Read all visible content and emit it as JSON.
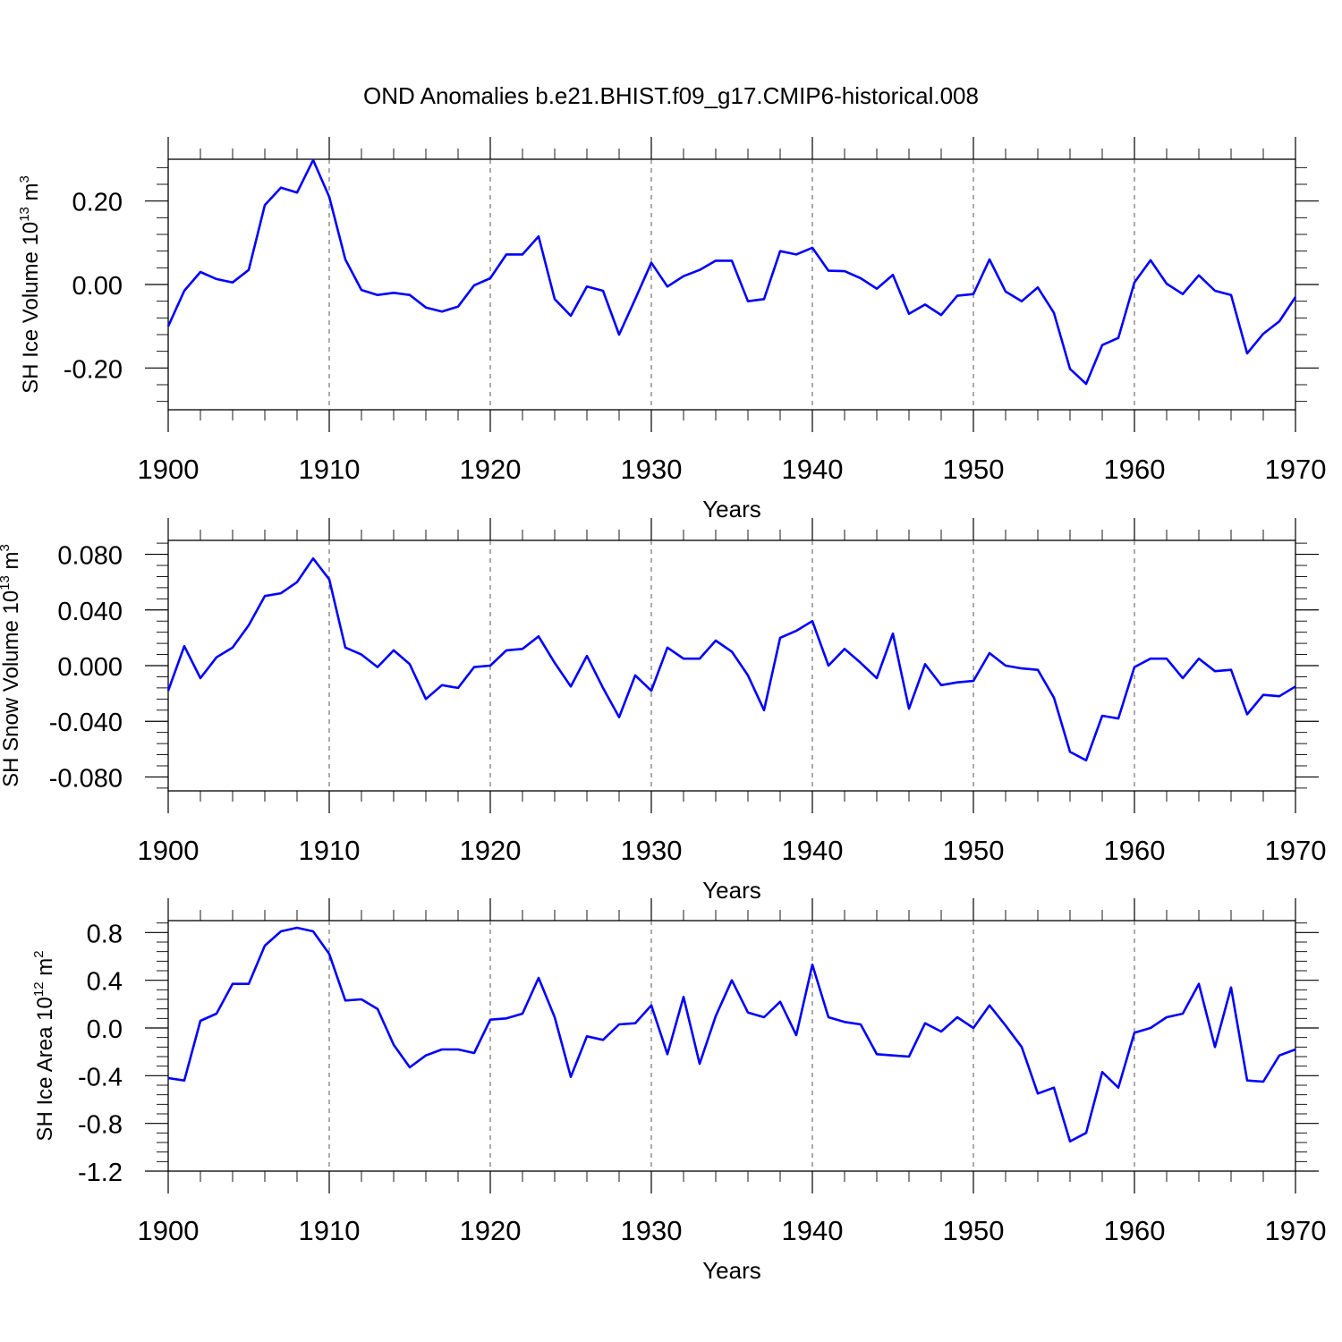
{
  "title": "OND Anomalies b.e21.BHIST.f09_g17.CMIP6-historical.008",
  "colors": {
    "line": "#0000ff",
    "axis": "#000000",
    "grid": "#555555"
  },
  "chart_data": [
    {
      "type": "line",
      "ylabel_main": "SH Ice Volume 10",
      "ylabel_exp": "13",
      "ylabel_unit": " m",
      "ylabel_unit_exp": "3",
      "xlabel": "Years",
      "xlim": [
        1900,
        1970
      ],
      "ylim": [
        -0.3,
        0.3
      ],
      "yticks": [
        -0.2,
        0.0,
        0.2
      ],
      "ytick_labels": [
        "-0.20",
        "0.00",
        "0.20"
      ],
      "xticks": [
        1900,
        1910,
        1920,
        1930,
        1940,
        1950,
        1960,
        1970
      ],
      "xtick_labels": [
        "1900",
        "1910",
        "1920",
        "1930",
        "1940",
        "1950",
        "1960",
        "1970"
      ],
      "grid_x": [
        1910,
        1920,
        1930,
        1940,
        1950,
        1960
      ],
      "x": [
        1900,
        1901,
        1902,
        1903,
        1904,
        1905,
        1906,
        1907,
        1908,
        1909,
        1910,
        1911,
        1912,
        1913,
        1914,
        1915,
        1916,
        1917,
        1918,
        1919,
        1920,
        1921,
        1922,
        1923,
        1924,
        1925,
        1926,
        1927,
        1928,
        1929,
        1930,
        1931,
        1932,
        1933,
        1934,
        1935,
        1936,
        1937,
        1938,
        1939,
        1940,
        1941,
        1942,
        1943,
        1944,
        1945,
        1946,
        1947,
        1948,
        1949,
        1950,
        1951,
        1952,
        1953,
        1954,
        1955,
        1956,
        1957,
        1958,
        1959,
        1960,
        1961,
        1962,
        1963,
        1964,
        1965,
        1966,
        1967,
        1968,
        1969,
        1970
      ],
      "values": [
        -0.1,
        -0.015,
        0.03,
        0.013,
        0.005,
        0.035,
        0.19,
        0.232,
        0.22,
        0.298,
        0.21,
        0.06,
        -0.013,
        -0.025,
        -0.02,
        -0.025,
        -0.055,
        -0.065,
        -0.053,
        -0.002,
        0.015,
        0.072,
        0.072,
        0.115,
        -0.035,
        -0.075,
        -0.005,
        -0.015,
        -0.12,
        -0.035,
        0.052,
        -0.005,
        0.02,
        0.035,
        0.057,
        0.057,
        -0.04,
        -0.035,
        0.08,
        0.072,
        0.088,
        0.033,
        0.032,
        0.015,
        -0.01,
        0.023,
        -0.07,
        -0.048,
        -0.073,
        -0.027,
        -0.023,
        0.06,
        -0.017,
        -0.04,
        -0.007,
        -0.068,
        -0.202,
        -0.238,
        -0.145,
        -0.128,
        0.005,
        0.058,
        0.002,
        -0.023,
        0.022,
        -0.015,
        -0.025,
        -0.165,
        -0.118,
        -0.088,
        -0.03
      ]
    },
    {
      "type": "line",
      "ylabel_main": "SH Snow Volume 10",
      "ylabel_exp": "13",
      "ylabel_unit": " m",
      "ylabel_unit_exp": "3",
      "xlabel": "Years",
      "xlim": [
        1900,
        1970
      ],
      "ylim": [
        -0.09,
        0.09
      ],
      "yticks": [
        -0.08,
        -0.04,
        0.0,
        0.04,
        0.08
      ],
      "ytick_labels": [
        "-0.080",
        "-0.040",
        "0.000",
        "0.040",
        "0.080"
      ],
      "xticks": [
        1900,
        1910,
        1920,
        1930,
        1940,
        1950,
        1960,
        1970
      ],
      "xtick_labels": [
        "1900",
        "1910",
        "1920",
        "1930",
        "1940",
        "1950",
        "1960",
        "1970"
      ],
      "grid_x": [
        1910,
        1920,
        1930,
        1940,
        1950,
        1960
      ],
      "x": [
        1900,
        1901,
        1902,
        1903,
        1904,
        1905,
        1906,
        1907,
        1908,
        1909,
        1910,
        1911,
        1912,
        1913,
        1914,
        1915,
        1916,
        1917,
        1918,
        1919,
        1920,
        1921,
        1922,
        1923,
        1924,
        1925,
        1926,
        1927,
        1928,
        1929,
        1930,
        1931,
        1932,
        1933,
        1934,
        1935,
        1936,
        1937,
        1938,
        1939,
        1940,
        1941,
        1942,
        1943,
        1944,
        1945,
        1946,
        1947,
        1948,
        1949,
        1950,
        1951,
        1952,
        1953,
        1954,
        1955,
        1956,
        1957,
        1958,
        1959,
        1960,
        1961,
        1962,
        1963,
        1964,
        1965,
        1966,
        1967,
        1968,
        1969,
        1970
      ],
      "values": [
        -0.018,
        0.014,
        -0.009,
        0.006,
        0.013,
        0.029,
        0.05,
        0.052,
        0.06,
        0.077,
        0.062,
        0.013,
        0.008,
        -0.001,
        0.011,
        0.001,
        -0.024,
        -0.014,
        -0.016,
        -0.001,
        0.0,
        0.011,
        0.012,
        0.021,
        0.002,
        -0.015,
        0.007,
        -0.016,
        -0.037,
        -0.007,
        -0.018,
        0.013,
        0.005,
        0.005,
        0.018,
        0.01,
        -0.007,
        -0.032,
        0.02,
        0.025,
        0.032,
        0.0,
        0.012,
        0.002,
        -0.009,
        0.023,
        -0.031,
        0.001,
        -0.014,
        -0.012,
        -0.011,
        0.009,
        0.0,
        -0.002,
        -0.003,
        -0.023,
        -0.062,
        -0.068,
        -0.036,
        -0.038,
        -0.001,
        0.005,
        0.005,
        -0.009,
        0.005,
        -0.004,
        -0.003,
        -0.035,
        -0.021,
        -0.022,
        -0.015
      ]
    },
    {
      "type": "line",
      "ylabel_main": "SH Ice Area 10",
      "ylabel_exp": "12",
      "ylabel_unit": " m",
      "ylabel_unit_exp": "2",
      "xlabel": "Years",
      "xlim": [
        1900,
        1970
      ],
      "ylim": [
        -1.2,
        0.9
      ],
      "yticks": [
        -1.2,
        -0.8,
        -0.4,
        0.0,
        0.4,
        0.8
      ],
      "ytick_labels": [
        "-1.2",
        "-0.8",
        "-0.4",
        "0.0",
        "0.4",
        "0.8"
      ],
      "xticks": [
        1900,
        1910,
        1920,
        1930,
        1940,
        1950,
        1960,
        1970
      ],
      "xtick_labels": [
        "1900",
        "1910",
        "1920",
        "1930",
        "1940",
        "1950",
        "1960",
        "1970"
      ],
      "grid_x": [
        1910,
        1920,
        1930,
        1940,
        1950,
        1960
      ],
      "x": [
        1900,
        1901,
        1902,
        1903,
        1904,
        1905,
        1906,
        1907,
        1908,
        1909,
        1910,
        1911,
        1912,
        1913,
        1914,
        1915,
        1916,
        1917,
        1918,
        1919,
        1920,
        1921,
        1922,
        1923,
        1924,
        1925,
        1926,
        1927,
        1928,
        1929,
        1930,
        1931,
        1932,
        1933,
        1934,
        1935,
        1936,
        1937,
        1938,
        1939,
        1940,
        1941,
        1942,
        1943,
        1944,
        1945,
        1946,
        1947,
        1948,
        1949,
        1950,
        1951,
        1952,
        1953,
        1954,
        1955,
        1956,
        1957,
        1958,
        1959,
        1960,
        1961,
        1962,
        1963,
        1964,
        1965,
        1966,
        1967,
        1968,
        1969,
        1970
      ],
      "values": [
        -0.42,
        -0.44,
        0.06,
        0.12,
        0.37,
        0.37,
        0.69,
        0.81,
        0.84,
        0.81,
        0.62,
        0.23,
        0.24,
        0.16,
        -0.14,
        -0.33,
        -0.23,
        -0.18,
        -0.18,
        -0.21,
        0.07,
        0.08,
        0.12,
        0.42,
        0.09,
        -0.41,
        -0.07,
        -0.1,
        0.03,
        0.04,
        0.19,
        -0.22,
        0.26,
        -0.3,
        0.1,
        0.4,
        0.13,
        0.09,
        0.22,
        -0.06,
        0.53,
        0.09,
        0.05,
        0.03,
        -0.22,
        -0.23,
        -0.24,
        0.04,
        -0.03,
        0.09,
        0.0,
        0.19,
        0.02,
        -0.16,
        -0.55,
        -0.5,
        -0.95,
        -0.88,
        -0.37,
        -0.5,
        -0.04,
        0.0,
        0.09,
        0.12,
        0.37,
        -0.16,
        0.34,
        -0.44,
        -0.45,
        -0.23,
        -0.18
      ]
    }
  ]
}
